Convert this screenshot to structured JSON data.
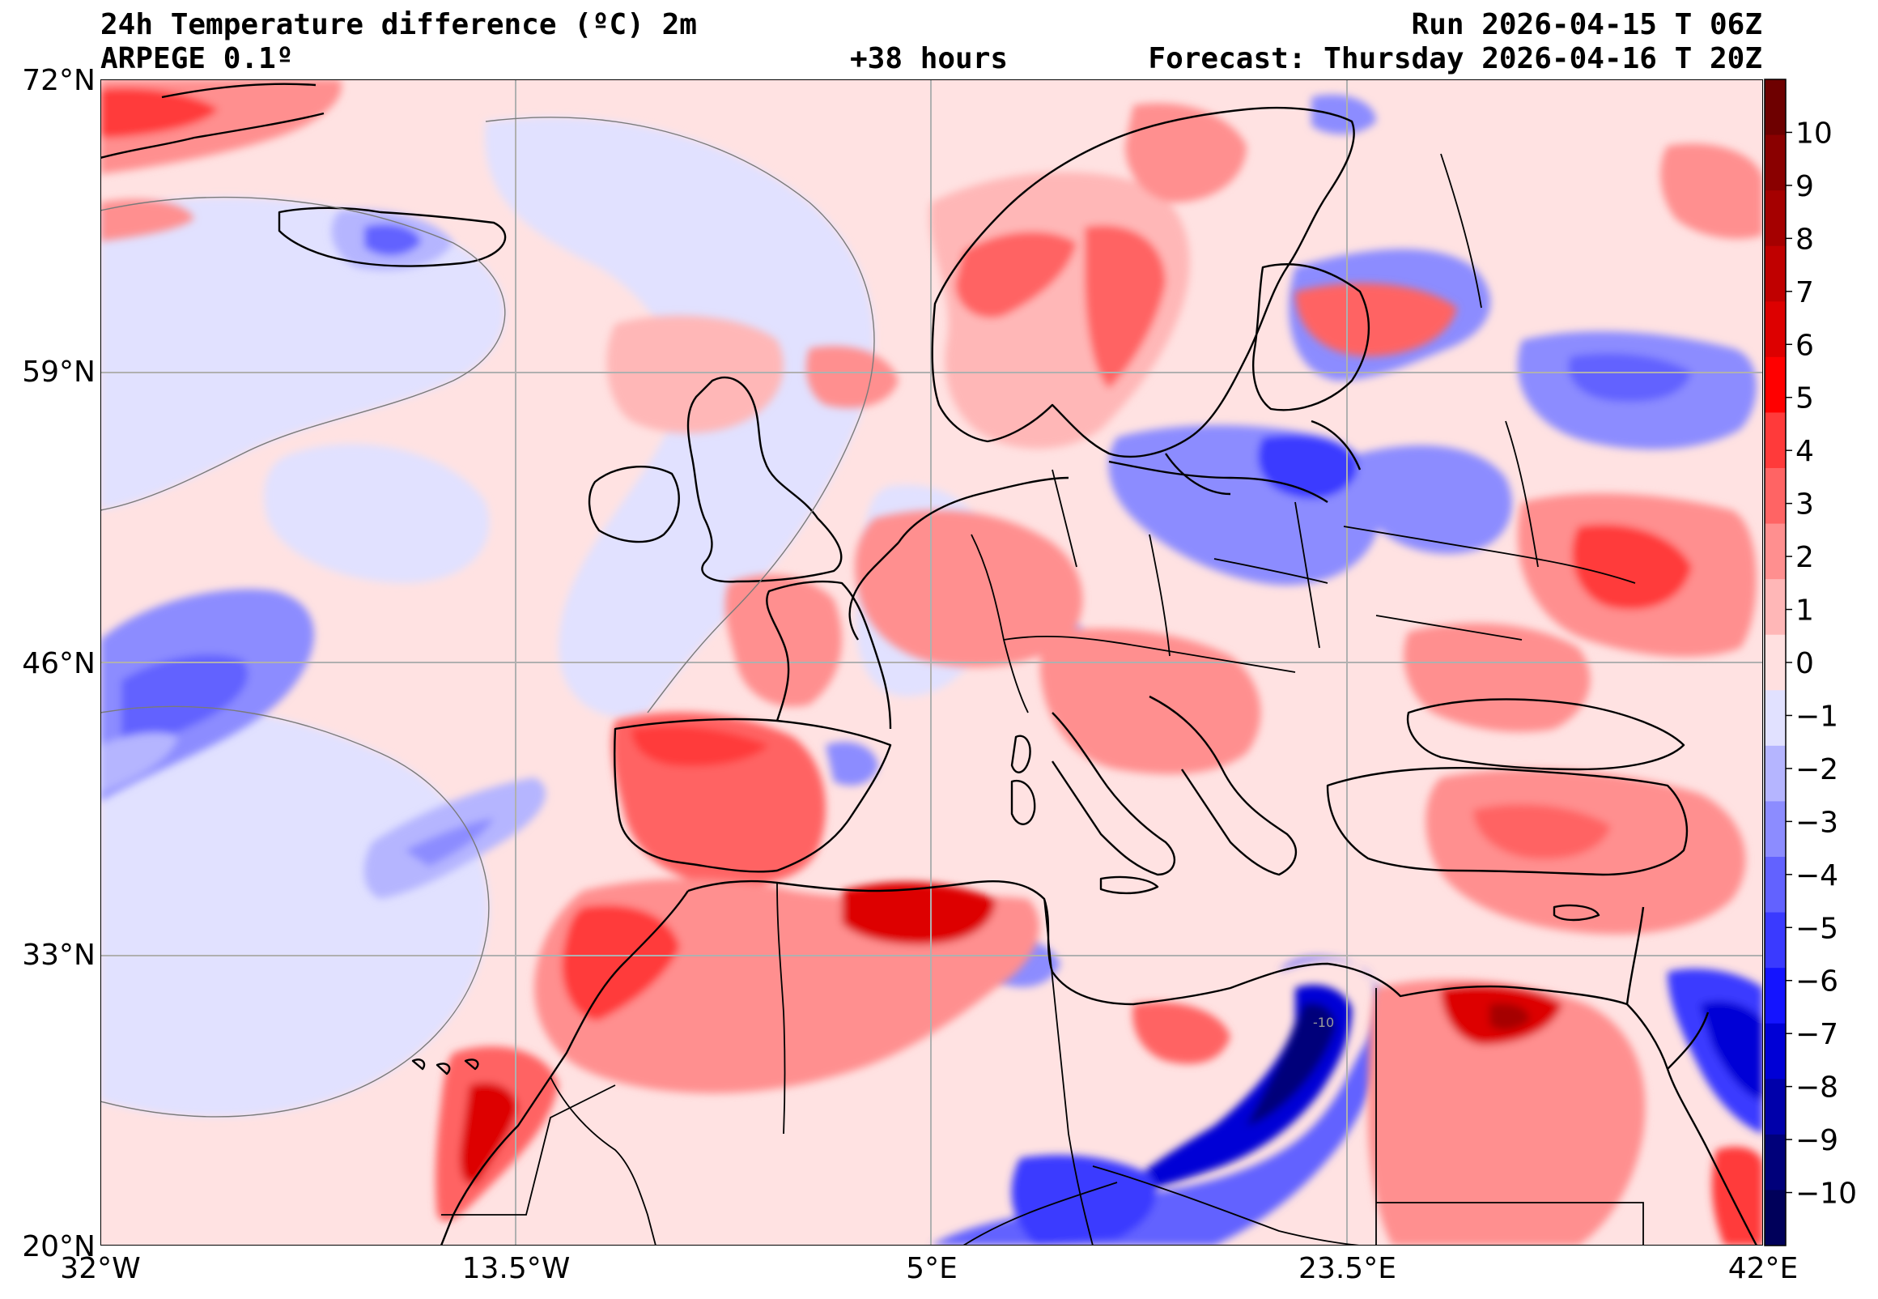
{
  "header": {
    "title": "24h Temperature difference (ºC) 2m",
    "model": "ARPEGE 0.1º",
    "lead_time": "+38 hours",
    "run": "Run 2026-04-15 T 06Z",
    "forecast": "Forecast: Thursday 2026-04-16 T 20Z"
  },
  "map": {
    "lat_labels": [
      "72°N",
      "59°N",
      "46°N",
      "33°N",
      "20°N"
    ],
    "lon_labels": [
      "32°W",
      "13.5°W",
      "5°E",
      "23.5°E",
      "42°E"
    ],
    "lat_values": [
      72,
      59,
      46,
      33,
      20
    ],
    "lon_values": [
      -32,
      -13.5,
      5,
      23.5,
      42
    ],
    "contour_label": "-10"
  },
  "colorbar": {
    "ticks": [
      10,
      9,
      8,
      7,
      6,
      5,
      4,
      3,
      2,
      1,
      0,
      -1,
      -2,
      -3,
      -4,
      -5,
      -6,
      -7,
      -8,
      -9,
      -10
    ],
    "tick_labels": [
      "10",
      "9",
      "8",
      "7",
      "6",
      "5",
      "4",
      "3",
      "2",
      "1",
      "0",
      "−1",
      "−2",
      "−3",
      "−4",
      "−5",
      "−6",
      "−7",
      "−8",
      "−9",
      "−10"
    ],
    "colors": [
      "#6e0000",
      "#8a0000",
      "#a50000",
      "#c00000",
      "#dd0000",
      "#ff0000",
      "#ff3a3a",
      "#ff6464",
      "#ff8f8f",
      "#ffb7b7",
      "#ffe0e0",
      "#e1e1ff",
      "#b5b5ff",
      "#8c8cff",
      "#6262ff",
      "#3a3aff",
      "#1414ff",
      "#0000d6",
      "#0000aa",
      "#00007a",
      "#00005a"
    ]
  }
}
